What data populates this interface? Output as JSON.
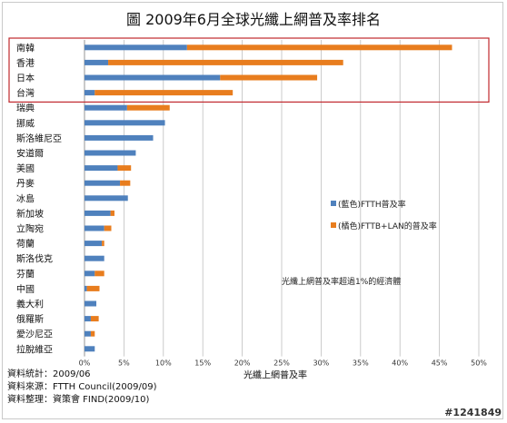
{
  "title": "圖  2009年6月全球光纖上網普及率排名",
  "chart_data": {
    "type": "bar",
    "orientation": "horizontal",
    "stacked": true,
    "categories": [
      "南韓",
      "香港",
      "日本",
      "台灣",
      "瑞典",
      "挪威",
      "斯洛維尼亞",
      "安道爾",
      "美國",
      "丹麥",
      "冰島",
      "新加坡",
      "立陶宛",
      "荷蘭",
      "斯洛伐克",
      "芬蘭",
      "中國",
      "義大利",
      "俄羅斯",
      "愛沙尼亞",
      "拉脫維亞"
    ],
    "series": [
      {
        "name": "(藍色)FTTH普及率",
        "color": "#4f81bd",
        "values": [
          13.0,
          3.0,
          17.2,
          1.3,
          5.4,
          10.2,
          8.7,
          6.5,
          4.2,
          4.5,
          5.5,
          3.3,
          2.5,
          2.2,
          2.5,
          1.3,
          0.3,
          1.5,
          0.8,
          0.8,
          1.3
        ]
      },
      {
        "name": "(橘色)FTTB+LAN的普及率",
        "color": "#e87d1e",
        "values": [
          33.6,
          29.8,
          12.3,
          17.5,
          5.4,
          0,
          0,
          0,
          1.7,
          1.3,
          0,
          0.5,
          0.9,
          0.3,
          0,
          1.2,
          1.6,
          0,
          1.0,
          0.5,
          0
        ]
      }
    ],
    "xlabel": "光纖上網普及率",
    "xlim": [
      0,
      50
    ],
    "xticks": [
      "0%",
      "5%",
      "10%",
      "15%",
      "20%",
      "25%",
      "30%",
      "35%",
      "40%",
      "45%",
      "50%"
    ],
    "grid": true,
    "annotation": "光纖上網普及率超過1%的經濟體",
    "legend_placement": "right"
  },
  "footer": {
    "line1": "資料統計：2009/06",
    "line2": "資料來源：FTTH Council(2009/09)",
    "line3": "資料整理：資策會 FIND(2009/10)"
  },
  "watermark": "#1241849",
  "colors": {
    "highlight_box": "#c0282d",
    "grid": "#bfbfbf"
  }
}
